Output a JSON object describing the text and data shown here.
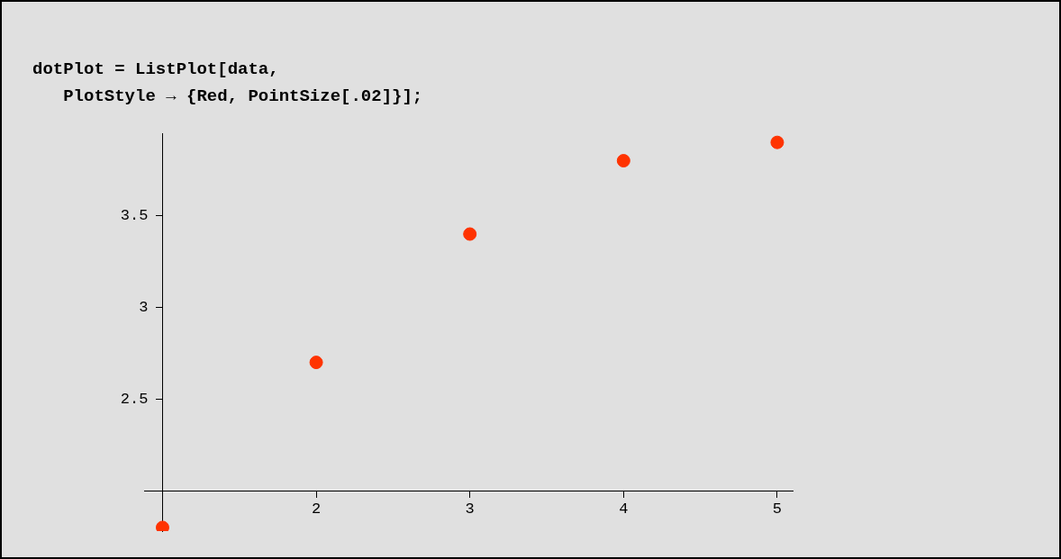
{
  "chart_data": {
    "type": "scatter",
    "annotations": [
      "dotPlot = ListPlot[data,",
      "   PlotStyle → {Red, PointSize[.02]}];"
    ],
    "x": [
      1,
      2,
      3,
      4,
      5
    ],
    "series": [
      {
        "color": "#ff3300",
        "values": [
          1.8,
          2.7,
          3.4,
          3.8,
          3.9
        ]
      }
    ],
    "xlim": [
      0.88,
      5.1
    ],
    "ylim": [
      1.78,
      3.95
    ],
    "xticks": [
      2,
      3,
      4,
      5
    ],
    "yticks": [
      2.5,
      3,
      3.5
    ],
    "grid": false,
    "legend": false,
    "marker": "circle"
  }
}
